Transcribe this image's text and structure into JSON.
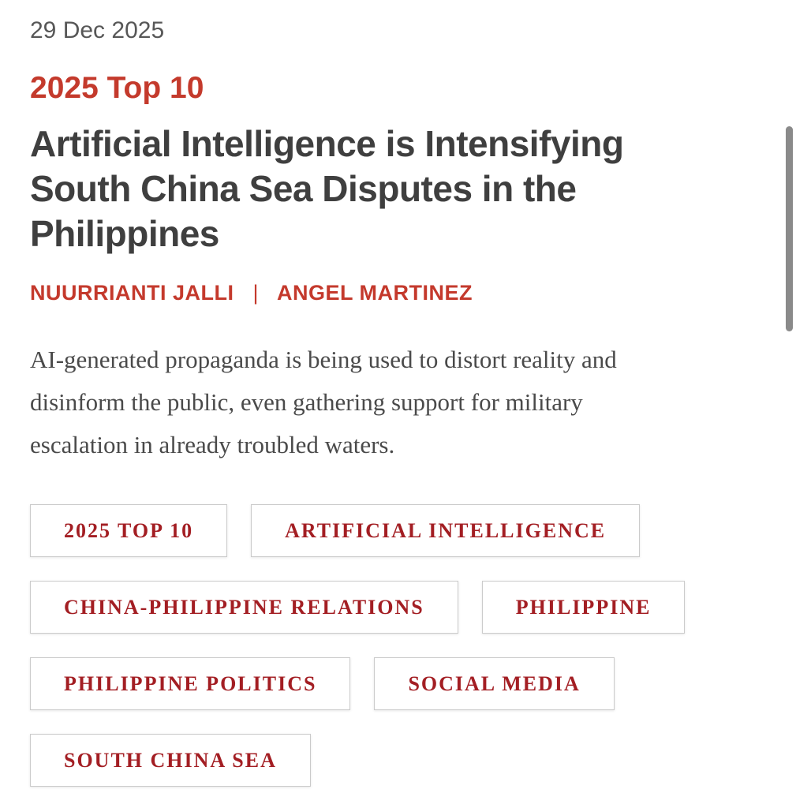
{
  "article": {
    "date": "29 Dec 2025",
    "kicker": "2025 Top 10",
    "title_lines": {
      "0": "Artificial Intelligence is Intensifying",
      "1": "South China Sea Disputes in the",
      "2": "Philippines"
    },
    "authors": {
      "0": "NUURRIANTI JALLI",
      "1": "ANGEL MARTINEZ"
    },
    "author_separator": "|",
    "dek_lines": {
      "0": "AI-generated propaganda is being used to distort reality and",
      "1": "disinform the public, even gathering support for military",
      "2": "escalation in already troubled waters."
    }
  },
  "tags": {
    "rows": [
      [
        "2025 TOP 10",
        "ARTIFICIAL INTELLIGENCE"
      ],
      [
        "CHINA-PHILIPPINE RELATIONS",
        "PHILIPPINE"
      ],
      [
        "PHILIPPINE POLITICS",
        "SOCIAL MEDIA"
      ],
      [
        "SOUTH CHINA SEA"
      ]
    ]
  },
  "colors": {
    "accent_red": "#c43a2c",
    "tag_red": "#a31e23",
    "title_gray": "#3f3f3f",
    "date_gray": "#575757",
    "body_text_gray": "#4a4a4a",
    "tag_border": "#cbcbcb",
    "scrollbar_gray": "#8a8a8a"
  }
}
